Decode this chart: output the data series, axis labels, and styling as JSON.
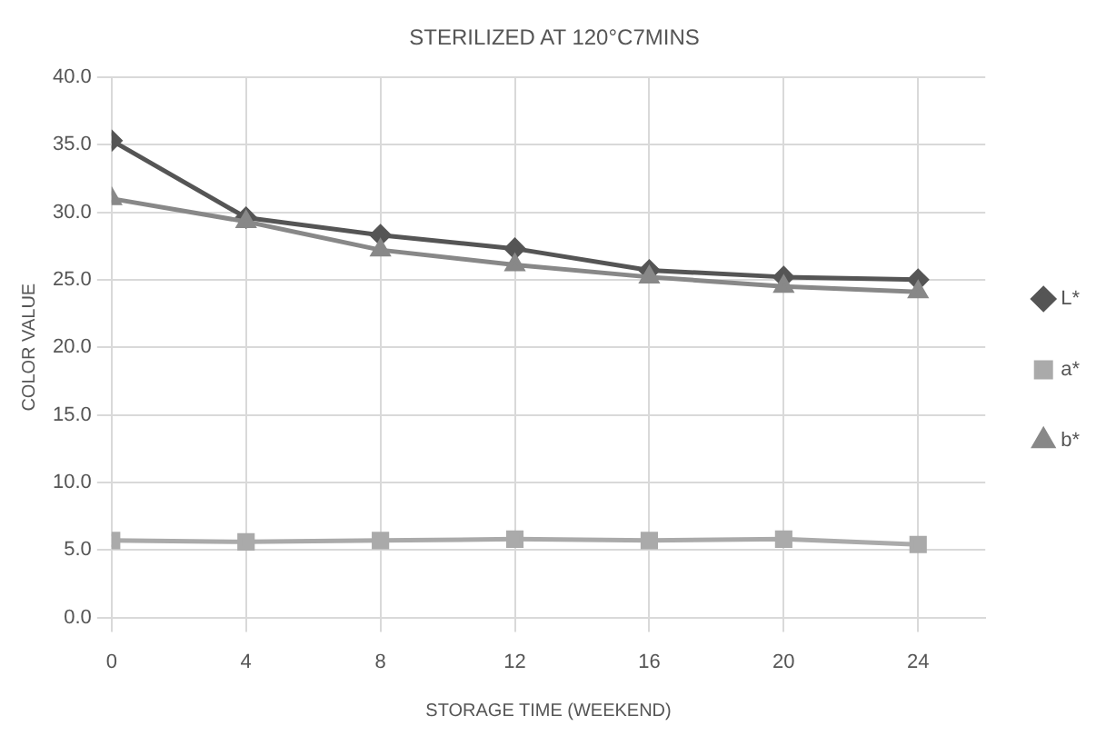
{
  "chart_data": {
    "type": "line",
    "title": "STERILIZED AT 120°C7MINS",
    "xlabel": "STORAGE TIME (WEEKEND)",
    "ylabel": "COLOR VALUE",
    "x": [
      0,
      4,
      8,
      12,
      16,
      20,
      24
    ],
    "xlim": [
      0,
      26
    ],
    "xticks": [
      0,
      4,
      8,
      12,
      16,
      20,
      24
    ],
    "ylim": [
      0,
      40
    ],
    "yticks": [
      {
        "value": 0,
        "label": "0.0"
      },
      {
        "value": 5,
        "label": "5.0"
      },
      {
        "value": 10,
        "label": "10.0"
      },
      {
        "value": 15,
        "label": "15.0"
      },
      {
        "value": 20,
        "label": "20.0"
      },
      {
        "value": 25,
        "label": "25.0"
      },
      {
        "value": 30,
        "label": "30.0"
      },
      {
        "value": 35,
        "label": "35.0"
      },
      {
        "value": 40,
        "label": "40.0"
      }
    ],
    "grid": true,
    "legend": "right",
    "series": [
      {
        "name": "L*",
        "color": "#555555",
        "marker": "diamond",
        "values": [
          35.3,
          29.6,
          28.3,
          27.3,
          25.7,
          25.2,
          25.0
        ]
      },
      {
        "name": "a*",
        "color": "#aaaaaa",
        "marker": "square",
        "values": [
          5.7,
          5.6,
          5.7,
          5.8,
          5.7,
          5.8,
          5.4
        ]
      },
      {
        "name": "b*",
        "color": "#888888",
        "marker": "triangle",
        "values": [
          31.0,
          29.3,
          27.2,
          26.1,
          25.2,
          24.5,
          24.1
        ]
      }
    ]
  }
}
